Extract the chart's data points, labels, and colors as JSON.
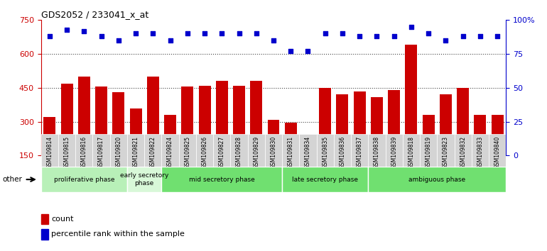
{
  "title": "GDS2052 / 233041_x_at",
  "samples": [
    "GSM109814",
    "GSM109815",
    "GSM109816",
    "GSM109817",
    "GSM109820",
    "GSM109821",
    "GSM109822",
    "GSM109824",
    "GSM109825",
    "GSM109826",
    "GSM109827",
    "GSM109828",
    "GSM109829",
    "GSM109830",
    "GSM109831",
    "GSM109834",
    "GSM109835",
    "GSM109836",
    "GSM109837",
    "GSM109838",
    "GSM109839",
    "GSM109818",
    "GSM109819",
    "GSM109823",
    "GSM109832",
    "GSM109833",
    "GSM109840"
  ],
  "counts": [
    320,
    470,
    500,
    455,
    430,
    360,
    500,
    330,
    455,
    460,
    480,
    460,
    480,
    310,
    295,
    185,
    450,
    420,
    435,
    410,
    440,
    640,
    330,
    420,
    450,
    330,
    330
  ],
  "percentiles": [
    88,
    93,
    92,
    88,
    85,
    90,
    90,
    85,
    90,
    90,
    90,
    90,
    90,
    85,
    77,
    77,
    90,
    90,
    88,
    88,
    88,
    95,
    90,
    85,
    88,
    88,
    88
  ],
  "bar_color": "#cc0000",
  "dot_color": "#0000cc",
  "phases": [
    {
      "label": "proliferative phase",
      "start": 0,
      "end": 5,
      "color": "#b8f0b8"
    },
    {
      "label": "early secretory\nphase",
      "start": 5,
      "end": 7,
      "color": "#d8f8d8"
    },
    {
      "label": "mid secretory phase",
      "start": 7,
      "end": 14,
      "color": "#70e070"
    },
    {
      "label": "late secretory phase",
      "start": 14,
      "end": 19,
      "color": "#70e070"
    },
    {
      "label": "ambiguous phase",
      "start": 19,
      "end": 27,
      "color": "#70e070"
    }
  ],
  "ylim": [
    150,
    750
  ],
  "yticks": [
    150,
    300,
    450,
    600,
    750
  ],
  "grid_lines": [
    300,
    450,
    600
  ],
  "percentile_ylim": [
    0,
    100
  ],
  "percentile_yticks": [
    0,
    25,
    50,
    75,
    100
  ],
  "bar_width": 0.7,
  "bg_color": "#ffffff"
}
